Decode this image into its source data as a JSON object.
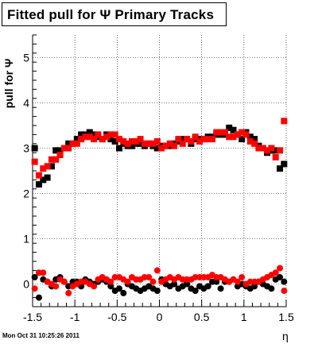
{
  "title": "Fitted pull for  Ψ   Primary Tracks",
  "footer_timestamp": "Mon Oct 31 10:25:26 2011",
  "chart_data": {
    "type": "scatter",
    "title": "Fitted pull for  Ψ   Primary Tracks",
    "xlabel": "η",
    "ylabel": "pull for Ψ",
    "xlim": [
      -1.5,
      1.5
    ],
    "ylim": [
      -0.5,
      5.5
    ],
    "x_ticks": [
      "-1.5",
      "-1",
      "-0.5",
      "0",
      "0.5",
      "1",
      "1.5"
    ],
    "y_ticks": [
      "0",
      "1",
      "2",
      "3",
      "4",
      "5"
    ],
    "grid": true,
    "colors": {
      "black_series": "#000000",
      "red_series": "#ff0000"
    },
    "series": [
      {
        "marker": "square",
        "color": "#000000",
        "x": [
          -1.475,
          -1.425,
          -1.375,
          -1.325,
          -1.275,
          -1.225,
          -1.175,
          -1.125,
          -1.075,
          -1.025,
          -0.975,
          -0.925,
          -0.875,
          -0.825,
          -0.775,
          -0.725,
          -0.675,
          -0.625,
          -0.575,
          -0.525,
          -0.475,
          -0.425,
          -0.375,
          -0.325,
          -0.275,
          -0.225,
          -0.175,
          -0.125,
          -0.075,
          -0.025,
          0.025,
          0.075,
          0.125,
          0.175,
          0.225,
          0.275,
          0.325,
          0.375,
          0.425,
          0.475,
          0.525,
          0.575,
          0.625,
          0.675,
          0.725,
          0.775,
          0.825,
          0.875,
          0.925,
          0.975,
          1.025,
          1.075,
          1.125,
          1.175,
          1.225,
          1.275,
          1.325,
          1.375,
          1.425,
          1.475
        ],
        "y": [
          3.0,
          2.2,
          2.3,
          2.35,
          2.6,
          2.95,
          2.95,
          3.0,
          3.1,
          3.1,
          3.2,
          3.3,
          3.3,
          3.35,
          3.3,
          3.25,
          3.2,
          3.3,
          3.2,
          3.15,
          3.0,
          3.1,
          3.05,
          3.05,
          3.1,
          3.1,
          3.05,
          3.1,
          3.05,
          3.0,
          3.05,
          3.05,
          3.05,
          3.1,
          3.15,
          3.2,
          3.2,
          3.1,
          3.2,
          3.2,
          3.2,
          3.25,
          3.25,
          3.3,
          3.3,
          3.3,
          3.45,
          3.4,
          3.3,
          3.2,
          3.35,
          3.25,
          3.2,
          3.05,
          3.0,
          2.9,
          2.95,
          2.95,
          2.55,
          2.65
        ]
      },
      {
        "marker": "square",
        "color": "#ff0000",
        "x": [
          -1.475,
          -1.425,
          -1.375,
          -1.325,
          -1.275,
          -1.225,
          -1.175,
          -1.125,
          -1.075,
          -1.025,
          -0.975,
          -0.925,
          -0.875,
          -0.825,
          -0.775,
          -0.725,
          -0.675,
          -0.625,
          -0.575,
          -0.525,
          -0.475,
          -0.425,
          -0.375,
          -0.325,
          -0.275,
          -0.225,
          -0.175,
          -0.125,
          -0.075,
          -0.025,
          0.025,
          0.075,
          0.125,
          0.175,
          0.225,
          0.275,
          0.325,
          0.375,
          0.425,
          0.475,
          0.525,
          0.575,
          0.625,
          0.675,
          0.725,
          0.775,
          0.825,
          0.875,
          0.925,
          0.975,
          1.025,
          1.075,
          1.125,
          1.175,
          1.225,
          1.275,
          1.325,
          1.375,
          1.425,
          1.475
        ],
        "y": [
          2.7,
          2.4,
          2.55,
          2.6,
          2.75,
          2.75,
          2.85,
          3.0,
          3.0,
          3.1,
          3.1,
          3.2,
          3.25,
          3.25,
          3.2,
          3.3,
          3.2,
          3.25,
          3.3,
          3.3,
          3.2,
          3.15,
          3.1,
          3.15,
          3.15,
          3.2,
          3.1,
          3.1,
          3.1,
          3.15,
          3.0,
          3.05,
          3.1,
          3.05,
          3.2,
          3.1,
          3.2,
          3.15,
          3.25,
          3.15,
          3.2,
          3.2,
          3.2,
          3.35,
          3.35,
          3.35,
          3.25,
          3.25,
          3.3,
          3.35,
          3.3,
          3.15,
          3.1,
          3.0,
          3.0,
          2.95,
          3.0,
          2.8,
          2.95,
          3.6
        ]
      },
      {
        "marker": "circle",
        "color": "#000000",
        "x": [
          -1.475,
          -1.425,
          -1.375,
          -1.325,
          -1.275,
          -1.225,
          -1.175,
          -1.125,
          -1.075,
          -1.025,
          -0.975,
          -0.925,
          -0.875,
          -0.825,
          -0.775,
          -0.725,
          -0.675,
          -0.625,
          -0.575,
          -0.525,
          -0.475,
          -0.425,
          -0.375,
          -0.325,
          -0.275,
          -0.225,
          -0.175,
          -0.125,
          -0.075,
          -0.025,
          0.025,
          0.075,
          0.125,
          0.175,
          0.225,
          0.275,
          0.325,
          0.375,
          0.425,
          0.475,
          0.525,
          0.575,
          0.625,
          0.675,
          0.725,
          0.775,
          0.825,
          0.875,
          0.925,
          0.975,
          1.025,
          1.075,
          1.125,
          1.175,
          1.225,
          1.275,
          1.325,
          1.375,
          1.425,
          1.475
        ],
        "y": [
          0.15,
          -0.3,
          0.1,
          0.05,
          -0.05,
          0.1,
          0.15,
          0.05,
          -0.05,
          0.05,
          0.05,
          -0.05,
          0.1,
          0.05,
          0.0,
          0.05,
          0.1,
          0.05,
          -0.05,
          -0.15,
          -0.1,
          -0.2,
          0.0,
          -0.05,
          -0.1,
          -0.15,
          -0.1,
          -0.05,
          -0.1,
          -0.15,
          0.1,
          0.0,
          -0.05,
          0.0,
          -0.1,
          -0.05,
          0.0,
          -0.1,
          -0.15,
          -0.05,
          -0.1,
          -0.05,
          0.05,
          0.05,
          -0.1,
          0.05,
          0.05,
          0.1,
          -0.05,
          0.0,
          -0.05,
          -0.1,
          -0.05,
          0.05,
          0.0,
          -0.05,
          -0.1,
          0.1,
          0.15,
          0.05
        ]
      },
      {
        "marker": "circle",
        "color": "#ff0000",
        "x": [
          -1.475,
          -1.425,
          -1.375,
          -1.325,
          -1.275,
          -1.225,
          -1.175,
          -1.125,
          -1.075,
          -1.025,
          -0.975,
          -0.925,
          -0.875,
          -0.825,
          -0.775,
          -0.725,
          -0.675,
          -0.625,
          -0.575,
          -0.525,
          -0.475,
          -0.425,
          -0.375,
          -0.325,
          -0.275,
          -0.225,
          -0.175,
          -0.125,
          -0.075,
          -0.025,
          0.025,
          0.075,
          0.125,
          0.175,
          0.225,
          0.275,
          0.325,
          0.375,
          0.425,
          0.475,
          0.525,
          0.575,
          0.625,
          0.675,
          0.725,
          0.775,
          0.825,
          0.875,
          0.925,
          0.975,
          1.025,
          1.075,
          1.125,
          1.175,
          1.225,
          1.275,
          1.325,
          1.375,
          1.425,
          1.475
        ],
        "y": [
          -0.1,
          0.25,
          0.25,
          0.05,
          0.0,
          -0.05,
          0.1,
          0.05,
          -0.2,
          -0.05,
          0.0,
          0.05,
          0.05,
          0.0,
          -0.05,
          0.1,
          0.15,
          0.1,
          0.05,
          0.15,
          0.15,
          0.1,
          0.05,
          0.15,
          0.1,
          0.1,
          0.15,
          0.15,
          0.05,
          0.3,
          0.05,
          0.1,
          0.15,
          0.1,
          0.15,
          0.1,
          0.1,
          0.1,
          0.15,
          0.15,
          0.15,
          0.15,
          0.2,
          0.15,
          0.15,
          0.1,
          0.05,
          0.1,
          0.05,
          0.15,
          0.0,
          0.05,
          0.05,
          0.05,
          0.1,
          0.15,
          0.2,
          0.25,
          0.35,
          -0.15
        ]
      }
    ]
  }
}
